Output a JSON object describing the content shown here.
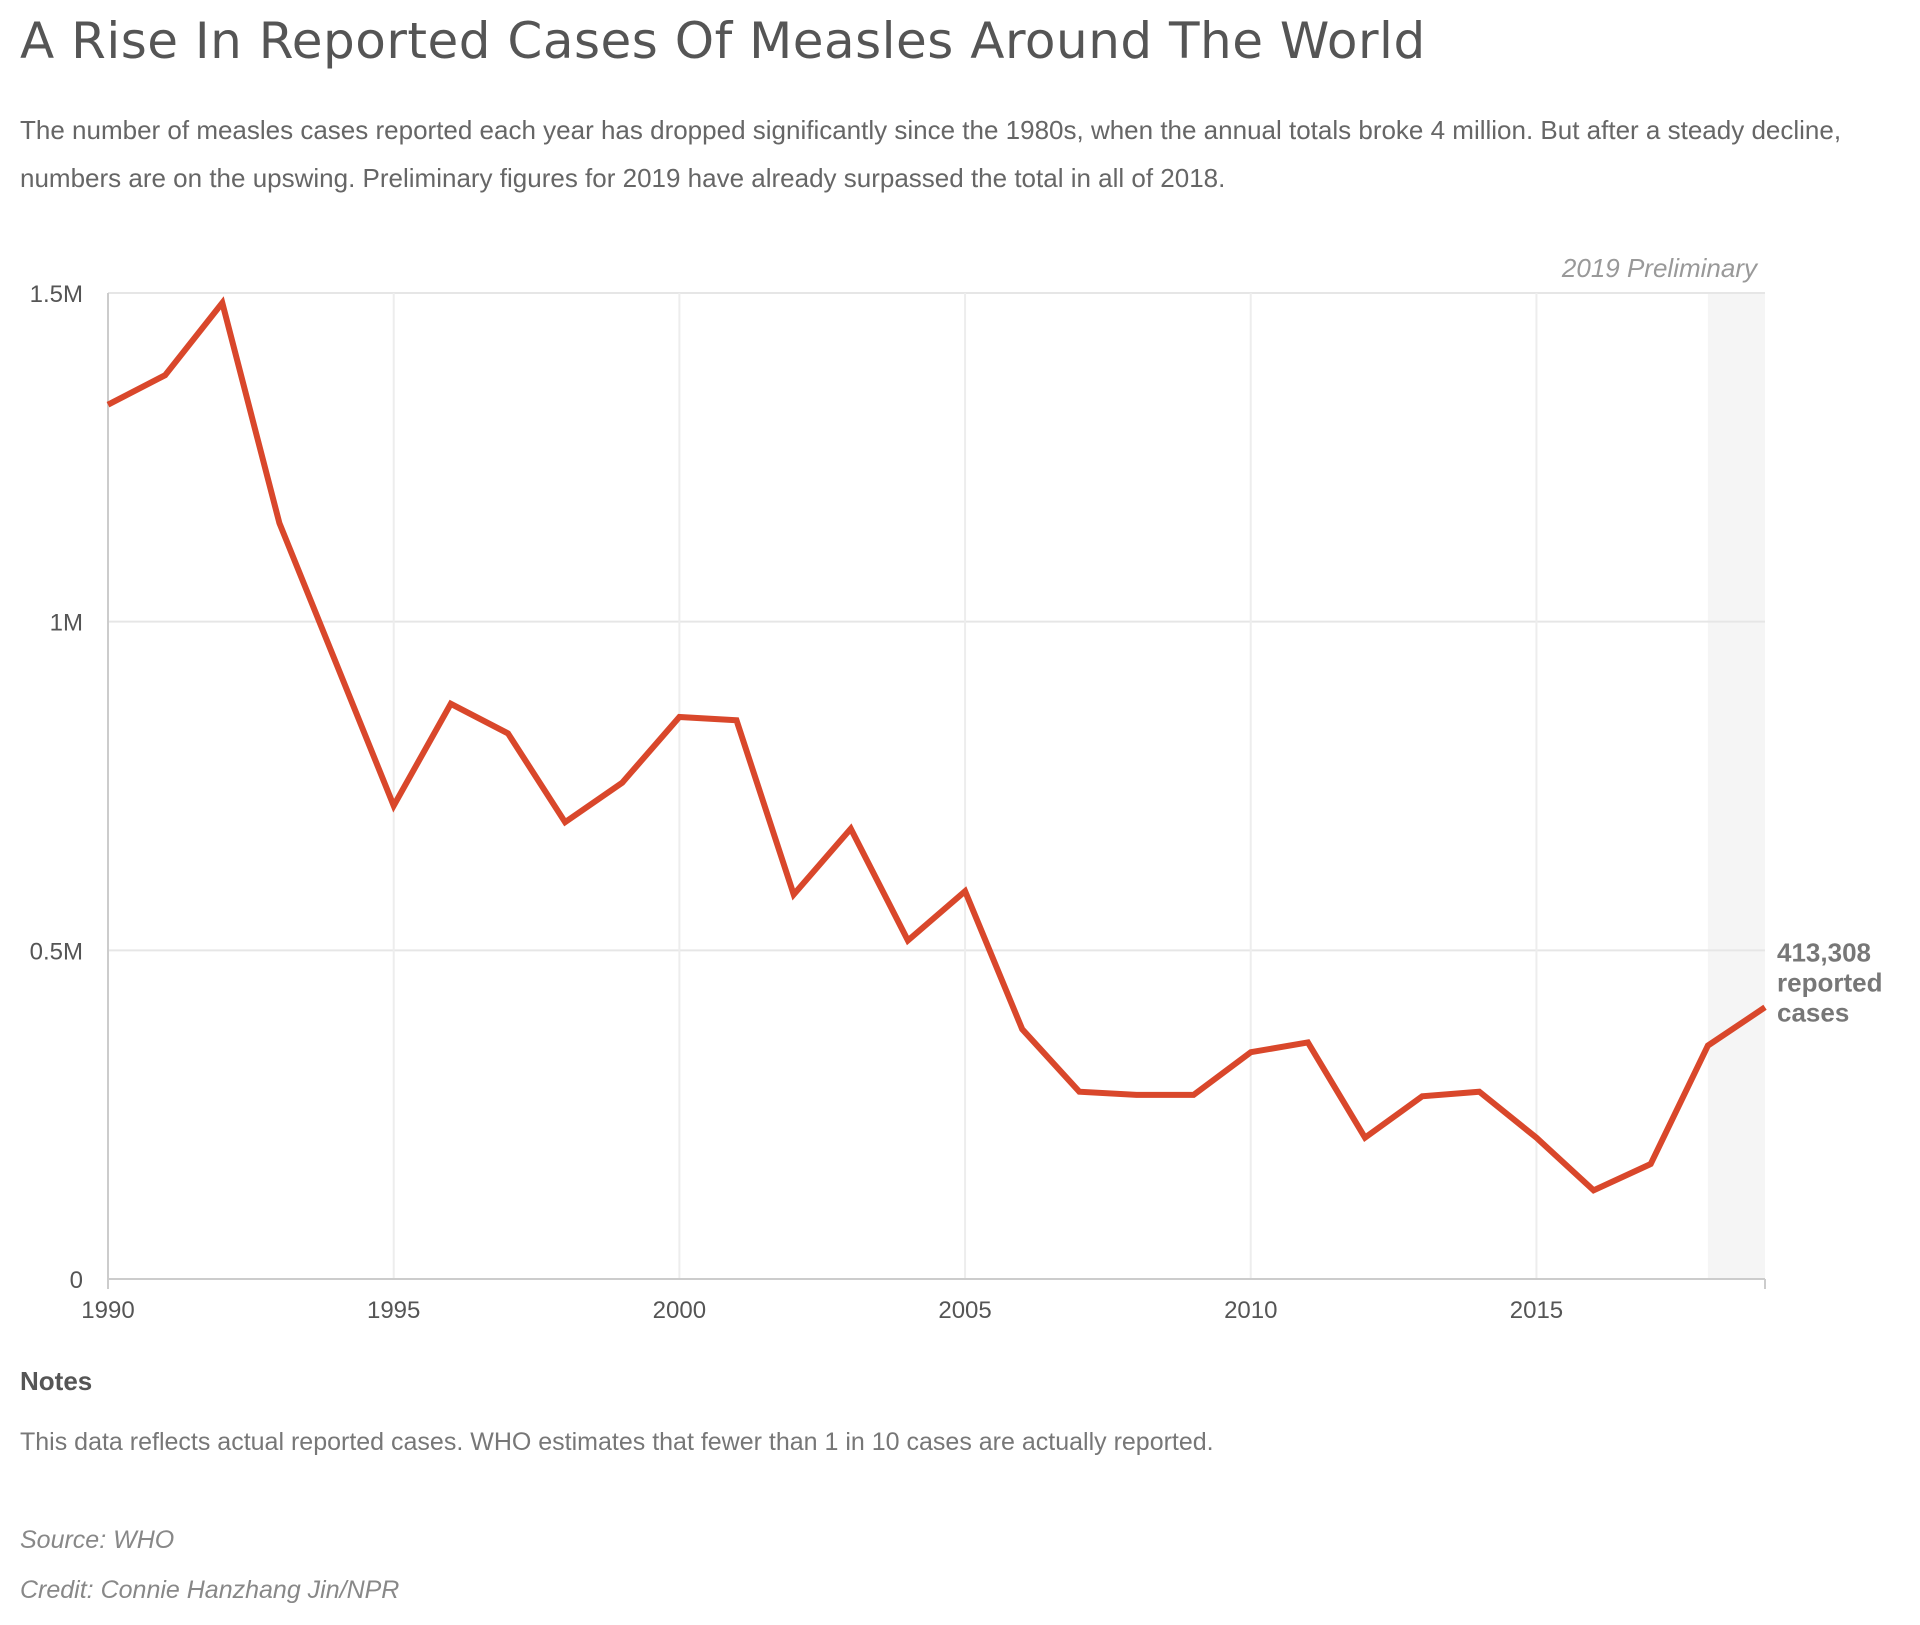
{
  "header": {
    "title": "A Rise In Reported Cases Of Measles Around The World",
    "subtitle": "The number of measles cases reported each year has dropped significantly since the 1980s, when the annual totals broke 4 million. But after a steady decline, numbers are on the upswing. Preliminary figures for 2019 have already surpassed the total in all of 2018."
  },
  "chart_data": {
    "type": "line",
    "title": "",
    "xlabel": "",
    "ylabel": "",
    "xlim": [
      1990,
      2019
    ],
    "ylim": [
      0,
      1500000
    ],
    "grid": true,
    "x_ticks": [
      1990,
      1995,
      2000,
      2005,
      2010,
      2015
    ],
    "x_tick_labels": [
      "1990",
      "1995",
      "2000",
      "2005",
      "2010",
      "2015"
    ],
    "y_ticks": [
      0,
      500000,
      1000000,
      1500000
    ],
    "y_tick_labels": [
      "0",
      "0.5M",
      "1M",
      "1.5M"
    ],
    "highlight_region": {
      "x_start": 2018,
      "x_end": 2019,
      "label": "2019 Preliminary"
    },
    "series": [
      {
        "name": "",
        "color": "#d9472b",
        "x": [
          1990,
          1991,
          1992,
          1993,
          1994,
          1995,
          1996,
          1997,
          1998,
          1999,
          2000,
          2001,
          2002,
          2003,
          2004,
          2005,
          2006,
          2007,
          2008,
          2009,
          2010,
          2011,
          2012,
          2013,
          2014,
          2015,
          2016,
          2017,
          2018,
          2019
        ],
        "values": [
          1330000,
          1375000,
          1485000,
          1150000,
          935000,
          720000,
          875000,
          830000,
          695000,
          755000,
          855000,
          850000,
          585000,
          685000,
          515000,
          590000,
          380000,
          285000,
          280000,
          280000,
          345000,
          360000,
          215000,
          278000,
          285000,
          215000,
          135000,
          175000,
          355000,
          413308
        ]
      }
    ],
    "annotation": {
      "x": 2019,
      "y": 413308,
      "line1": "413,308",
      "line2": "reported",
      "line3": "cases"
    }
  },
  "notes": {
    "heading": "Notes",
    "text": "This data reflects actual reported cases. WHO estimates that fewer than 1 in 10 cases are actually reported."
  },
  "source": "Source: WHO",
  "credit": "Credit: Connie Hanzhang Jin/NPR"
}
